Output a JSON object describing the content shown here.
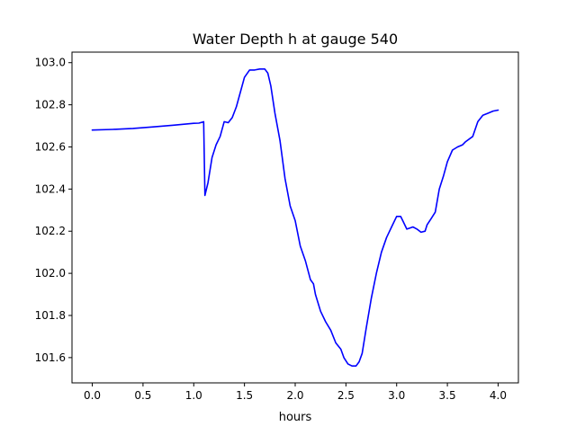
{
  "chart_data": {
    "type": "line",
    "title": "Water Depth h at gauge 540",
    "xlabel": "hours",
    "ylabel": "",
    "xlim": [
      -0.2,
      4.2
    ],
    "ylim": [
      101.48,
      103.05
    ],
    "xticks": [
      0.0,
      0.5,
      1.0,
      1.5,
      2.0,
      2.5,
      3.0,
      3.5,
      4.0
    ],
    "xtick_labels": [
      "0.0",
      "0.5",
      "1.0",
      "1.5",
      "2.0",
      "2.5",
      "3.0",
      "3.5",
      "4.0"
    ],
    "yticks": [
      101.6,
      101.8,
      102.0,
      102.2,
      102.4,
      102.6,
      102.8,
      103.0
    ],
    "ytick_labels": [
      "101.6",
      "101.8",
      "102.0",
      "102.2",
      "102.4",
      "102.6",
      "102.8",
      "103.0"
    ],
    "grid": false,
    "series": [
      {
        "color": "#0000ff",
        "x": [
          0.0,
          0.2,
          0.4,
          0.6,
          0.8,
          1.0,
          1.05,
          1.09,
          1.098,
          1.11,
          1.14,
          1.18,
          1.22,
          1.26,
          1.3,
          1.34,
          1.38,
          1.42,
          1.46,
          1.5,
          1.55,
          1.6,
          1.65,
          1.7,
          1.73,
          1.76,
          1.8,
          1.85,
          1.9,
          1.95,
          2.0,
          2.05,
          2.1,
          2.15,
          2.18,
          2.2,
          2.25,
          2.3,
          2.35,
          2.4,
          2.45,
          2.48,
          2.52,
          2.56,
          2.6,
          2.63,
          2.66,
          2.7,
          2.75,
          2.8,
          2.85,
          2.9,
          2.95,
          3.0,
          3.04,
          3.06,
          3.1,
          3.13,
          3.16,
          3.2,
          3.24,
          3.28,
          3.3,
          3.34,
          3.38,
          3.42,
          3.46,
          3.5,
          3.55,
          3.6,
          3.65,
          3.68,
          3.75,
          3.8,
          3.85,
          3.9,
          3.95,
          4.0
        ],
        "y": [
          102.68,
          102.683,
          102.688,
          102.695,
          102.703,
          102.712,
          102.713,
          102.718,
          102.72,
          102.37,
          102.43,
          102.55,
          102.61,
          102.65,
          102.72,
          102.715,
          102.74,
          102.79,
          102.86,
          102.93,
          102.965,
          102.965,
          102.97,
          102.97,
          102.95,
          102.89,
          102.76,
          102.63,
          102.45,
          102.32,
          102.25,
          102.13,
          102.06,
          101.97,
          101.95,
          101.9,
          101.82,
          101.77,
          101.73,
          101.67,
          101.64,
          101.6,
          101.57,
          101.56,
          101.56,
          101.58,
          101.62,
          101.74,
          101.88,
          102.0,
          102.1,
          102.17,
          102.22,
          102.27,
          102.27,
          102.25,
          102.21,
          102.215,
          102.22,
          102.21,
          102.195,
          102.2,
          102.23,
          102.26,
          102.29,
          102.4,
          102.46,
          102.53,
          102.585,
          102.6,
          102.61,
          102.625,
          102.65,
          102.72,
          102.75,
          102.76,
          102.77,
          102.775
        ]
      }
    ]
  }
}
